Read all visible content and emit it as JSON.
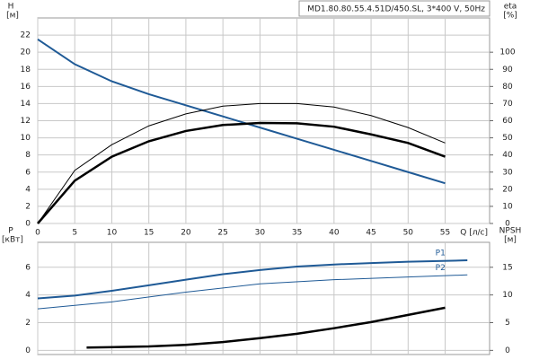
{
  "chart_data": [
    {
      "type": "line",
      "title": "MD1.80.80.55.4.51D/450.SL, 3*400 V, 50Hz",
      "y_label": "H",
      "y_unit": "[м]",
      "y2_label": "eta",
      "y2_unit": "[%]",
      "x_label": "Q [л/с]",
      "xlim": [
        0,
        61
      ],
      "xticks": [
        0,
        5,
        10,
        15,
        20,
        25,
        30,
        35,
        40,
        45,
        50,
        55
      ],
      "ylim": [
        0,
        24
      ],
      "yticks": [
        0,
        2,
        4,
        6,
        8,
        10,
        12,
        14,
        16,
        18,
        20,
        22
      ],
      "y2lim": [
        0,
        120
      ],
      "y2ticks": [
        0,
        10,
        20,
        30,
        40,
        50,
        60,
        70,
        80,
        90,
        100
      ],
      "grid": true,
      "x": [
        0,
        5,
        10,
        15,
        20,
        25,
        30,
        35,
        40,
        45,
        50,
        55
      ],
      "series": [
        {
          "color": "#1f5a96",
          "width": 2,
          "values": [
            21.5,
            18.6,
            16.6,
            15.1,
            13.8,
            12.5,
            11.2,
            9.9,
            8.6,
            7.3,
            6.0,
            4.7
          ]
        },
        {
          "color": "#000000",
          "width": 1,
          "axis": "y2",
          "values": [
            0,
            31,
            46,
            57,
            64,
            68.5,
            70,
            70,
            68,
            63,
            56,
            47
          ]
        },
        {
          "color": "#000000",
          "width": 2.5,
          "axis": "y2",
          "values": [
            0,
            25,
            39,
            48,
            54,
            57.5,
            58.7,
            58.5,
            56.5,
            52,
            47,
            39
          ]
        }
      ]
    },
    {
      "type": "line",
      "y_label": "P",
      "y_unit": "[кВт]",
      "y2_label": "NPSH",
      "y2_unit": "[м]",
      "xlim": [
        0,
        61
      ],
      "xticks": [
        0,
        5,
        10,
        15,
        20,
        25,
        30,
        35,
        40,
        45,
        50,
        55
      ],
      "ylim": [
        -0.3,
        7.8
      ],
      "yticks": [
        0,
        2,
        4,
        6
      ],
      "y2lim": [
        -0.75,
        19.5
      ],
      "y2ticks": [
        0,
        5,
        10,
        15
      ],
      "grid": true,
      "series": [
        {
          "name": "P1",
          "color": "#1f5a96",
          "width": 2,
          "x": [
            0,
            5,
            10,
            15,
            20,
            25,
            30,
            35,
            40,
            45,
            50,
            58
          ],
          "values": [
            3.75,
            3.95,
            4.3,
            4.7,
            5.1,
            5.5,
            5.8,
            6.05,
            6.2,
            6.3,
            6.4,
            6.5
          ]
        },
        {
          "name": "P2",
          "color": "#1f5a96",
          "width": 1,
          "x": [
            0,
            10,
            20,
            30,
            40,
            50,
            58
          ],
          "values": [
            3.0,
            3.5,
            4.2,
            4.8,
            5.1,
            5.3,
            5.45
          ]
        },
        {
          "color": "#000000",
          "width": 2.5,
          "axis": "y2",
          "x": [
            6.6,
            15,
            20,
            25,
            30,
            35,
            40,
            45,
            50,
            55
          ],
          "values": [
            0.5,
            0.7,
            1.0,
            1.5,
            2.2,
            3.0,
            4.0,
            5.1,
            6.4,
            7.7
          ]
        }
      ]
    }
  ]
}
